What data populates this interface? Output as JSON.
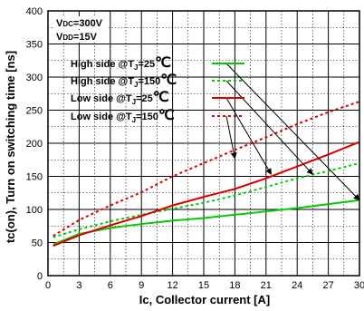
{
  "chart_data": {
    "type": "line",
    "title": "",
    "xlabel": "Ic, Collector current [A]",
    "ylabel": "tc(on), Turn on switching time [ns]",
    "xlim": [
      0,
      30
    ],
    "ylim": [
      0,
      400
    ],
    "x_ticks": [
      0,
      3,
      6,
      9,
      12,
      15,
      18,
      21,
      24,
      27,
      30
    ],
    "y_ticks": [
      0,
      50,
      100,
      150,
      200,
      250,
      300,
      350,
      400
    ],
    "minor_grid": {
      "x_step": 1.5,
      "y_step": 25
    },
    "grid": true,
    "conditions": [
      {
        "main": "V",
        "sub": "DC",
        "rest": "=300V"
      },
      {
        "main": "V",
        "sub": "DD",
        "rest": "=15V"
      }
    ],
    "legend_position": "top-left",
    "series": [
      {
        "label_pre": "High side @T",
        "label_sub": "J",
        "label_post": "=25",
        "unit_glyph": "℃",
        "color": "#00cc00",
        "dash": "solid",
        "x": [
          0.5,
          3,
          6,
          9,
          12,
          15,
          18,
          21,
          24,
          27,
          30
        ],
        "y": [
          47,
          63,
          72,
          78,
          83,
          87,
          92,
          97,
          102,
          108,
          114
        ]
      },
      {
        "label_pre": "High side @T",
        "label_sub": "J",
        "label_post": "=150",
        "unit_glyph": "℃",
        "color": "#00cc00",
        "dash": "dashed",
        "x": [
          0.5,
          3,
          6,
          9,
          12,
          15,
          18,
          21,
          24,
          27,
          30
        ],
        "y": [
          58,
          70,
          82,
          92,
          101,
          110,
          121,
          134,
          147,
          158,
          170
        ]
      },
      {
        "label_pre": "Low side @T",
        "label_sub": "J",
        "label_post": "=25",
        "unit_glyph": "℃",
        "color": "#dd0000",
        "dash": "solid",
        "x": [
          0.5,
          3,
          6,
          9,
          12,
          15,
          18,
          21,
          24,
          27,
          30
        ],
        "y": [
          45,
          61,
          76,
          90,
          106,
          119,
          131,
          147,
          165,
          183,
          202
        ]
      },
      {
        "label_pre": "Low side @T",
        "label_sub": "J",
        "label_post": "=150",
        "unit_glyph": "℃",
        "color": "#dd0000",
        "dash": "dashed",
        "x": [
          0.5,
          3,
          6,
          9,
          12,
          15,
          18,
          21,
          24,
          27,
          30
        ],
        "y": [
          60,
          84,
          106,
          126,
          150,
          170,
          190,
          209,
          229,
          247,
          263
        ]
      }
    ],
    "annotation_targets": [
      {
        "series": 0,
        "x": 30,
        "y": 114
      },
      {
        "series": 1,
        "x": 25.5,
        "y": 153
      },
      {
        "series": 2,
        "x": 21.5,
        "y": 153
      },
      {
        "series": 3,
        "x": 18,
        "y": 177
      }
    ]
  }
}
